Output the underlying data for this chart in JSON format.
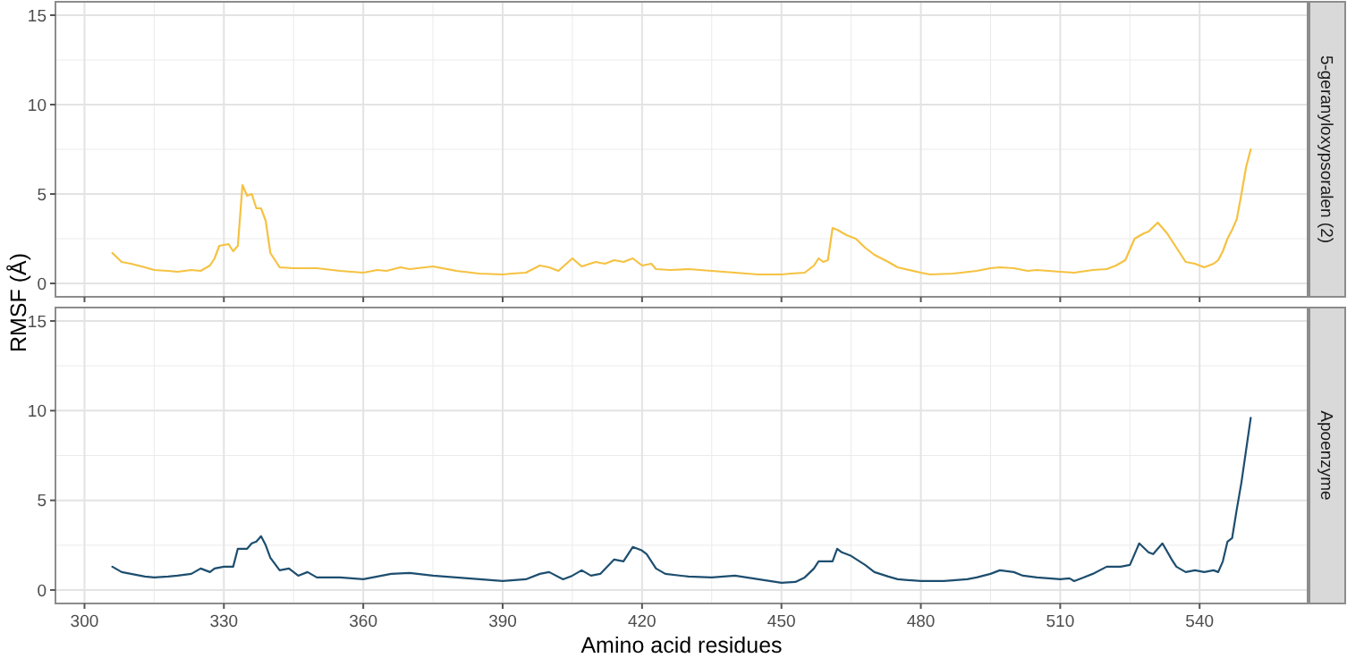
{
  "chart_data": [
    {
      "type": "line",
      "title": "5-geranyloxypsoralen (2)",
      "ylabel": "RMSF (Å)",
      "xlim": [
        293.75,
        563.25
      ],
      "xticks": [
        300,
        330,
        360,
        390,
        420,
        450,
        480,
        510,
        540
      ],
      "ylim": [
        -0.75,
        15.75
      ],
      "yticks": [
        0,
        5,
        10,
        15
      ],
      "grid": true,
      "tick_labels": "y",
      "series": [
        {
          "color": "#f5c242",
          "x": [
            306,
            308,
            310,
            313,
            315,
            318,
            320,
            323,
            325,
            327,
            328,
            329,
            331,
            332,
            333,
            334,
            335,
            336,
            337,
            338,
            339,
            340,
            342,
            345,
            350,
            355,
            360,
            363,
            365,
            368,
            370,
            375,
            380,
            385,
            390,
            392,
            395,
            398,
            400,
            402,
            405,
            407,
            410,
            412,
            414,
            416,
            418,
            420,
            422,
            423,
            426,
            430,
            435,
            440,
            445,
            450,
            452,
            455,
            457,
            458,
            459,
            460,
            461,
            462,
            464,
            466,
            468,
            470,
            473,
            475,
            480,
            482,
            487,
            492,
            495,
            497,
            500,
            503,
            505,
            510,
            513,
            517,
            520,
            522,
            524,
            526,
            528,
            529,
            531,
            533,
            535,
            537,
            539,
            541,
            543,
            544,
            545,
            546,
            547,
            548,
            549,
            550,
            551
          ],
          "values": [
            1.7,
            1.2,
            1.1,
            0.9,
            0.75,
            0.7,
            0.65,
            0.75,
            0.7,
            1.0,
            1.4,
            2.1,
            2.2,
            1.8,
            2.1,
            5.5,
            4.9,
            5.0,
            4.2,
            4.2,
            3.5,
            1.7,
            0.9,
            0.85,
            0.85,
            0.7,
            0.6,
            0.75,
            0.7,
            0.9,
            0.8,
            0.95,
            0.7,
            0.55,
            0.5,
            0.55,
            0.6,
            1.0,
            0.9,
            0.7,
            1.4,
            0.95,
            1.2,
            1.1,
            1.3,
            1.2,
            1.4,
            1.0,
            1.1,
            0.8,
            0.75,
            0.8,
            0.7,
            0.6,
            0.5,
            0.5,
            0.55,
            0.6,
            1.0,
            1.4,
            1.2,
            1.3,
            3.1,
            3.0,
            2.7,
            2.5,
            2.0,
            1.6,
            1.2,
            0.9,
            0.6,
            0.5,
            0.55,
            0.7,
            0.85,
            0.9,
            0.85,
            0.7,
            0.75,
            0.65,
            0.6,
            0.75,
            0.8,
            1.0,
            1.3,
            2.5,
            2.8,
            2.9,
            3.4,
            2.8,
            2.0,
            1.2,
            1.1,
            0.9,
            1.1,
            1.3,
            1.8,
            2.5,
            3.0,
            3.6,
            5.0,
            6.5,
            7.5
          ]
        }
      ]
    },
    {
      "type": "line",
      "title": "Apoenzyme",
      "xlabel": "Amino acid residues",
      "xlim": [
        293.75,
        563.25
      ],
      "xticks": [
        300,
        330,
        360,
        390,
        420,
        450,
        480,
        510,
        540
      ],
      "ylim": [
        -0.75,
        15.75
      ],
      "yticks": [
        0,
        5,
        10,
        15
      ],
      "grid": true,
      "series": [
        {
          "color": "#1d4e6f",
          "x": [
            306,
            308,
            310,
            313,
            315,
            318,
            320,
            323,
            325,
            327,
            328,
            330,
            332,
            333,
            335,
            336,
            337,
            338,
            339,
            340,
            342,
            344,
            346,
            348,
            350,
            355,
            360,
            363,
            366,
            370,
            375,
            380,
            385,
            390,
            395,
            398,
            400,
            403,
            405,
            407,
            409,
            411,
            414,
            416,
            418,
            420,
            421,
            423,
            425,
            430,
            435,
            440,
            445,
            450,
            453,
            455,
            457,
            458,
            461,
            462,
            463,
            465,
            468,
            470,
            473,
            475,
            480,
            485,
            490,
            492,
            495,
            497,
            500,
            502,
            505,
            510,
            512,
            513,
            515,
            517,
            520,
            523,
            525,
            527,
            529,
            530,
            532,
            534,
            535,
            537,
            539,
            541,
            543,
            544,
            545,
            546,
            547,
            548,
            549,
            550,
            551
          ],
          "values": [
            1.3,
            1.0,
            0.9,
            0.75,
            0.7,
            0.75,
            0.8,
            0.9,
            1.2,
            1.0,
            1.2,
            1.3,
            1.3,
            2.3,
            2.3,
            2.6,
            2.7,
            3.0,
            2.5,
            1.8,
            1.1,
            1.2,
            0.8,
            1.0,
            0.7,
            0.7,
            0.6,
            0.75,
            0.9,
            0.95,
            0.8,
            0.7,
            0.6,
            0.5,
            0.6,
            0.9,
            1.0,
            0.6,
            0.8,
            1.1,
            0.8,
            0.9,
            1.7,
            1.6,
            2.4,
            2.2,
            2.0,
            1.2,
            0.9,
            0.75,
            0.7,
            0.8,
            0.6,
            0.4,
            0.45,
            0.7,
            1.2,
            1.6,
            1.6,
            2.3,
            2.1,
            1.9,
            1.4,
            1.0,
            0.75,
            0.6,
            0.5,
            0.5,
            0.6,
            0.7,
            0.9,
            1.1,
            1.0,
            0.8,
            0.7,
            0.6,
            0.65,
            0.5,
            0.7,
            0.9,
            1.3,
            1.3,
            1.4,
            2.6,
            2.1,
            2.0,
            2.6,
            1.7,
            1.3,
            1.0,
            1.1,
            1.0,
            1.1,
            1.0,
            1.6,
            2.7,
            2.9,
            4.5,
            6.0,
            7.8,
            9.6
          ]
        }
      ]
    }
  ]
}
